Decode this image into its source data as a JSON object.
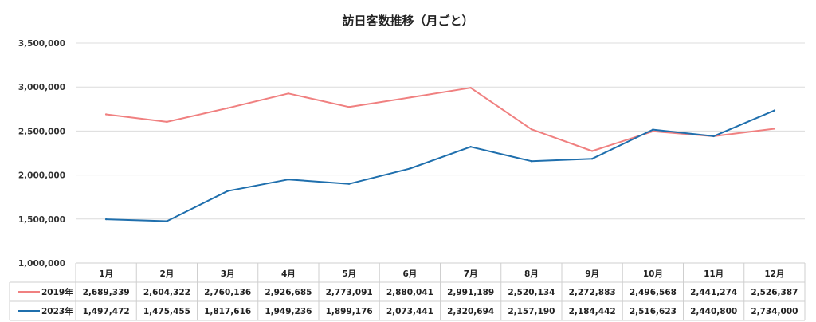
{
  "chart_data": {
    "type": "line",
    "title": "訪日客数推移（月ごと）",
    "categories": [
      "1月",
      "2月",
      "3月",
      "4月",
      "5月",
      "6月",
      "7月",
      "8月",
      "9月",
      "10月",
      "11月",
      "12月"
    ],
    "y_ticks": [
      "3,500,000",
      "3,000,000",
      "2,500,000",
      "2,000,000",
      "1,500,000",
      "1,000,000"
    ],
    "ylim": [
      1000000,
      3500000
    ],
    "grid": true,
    "legend": "data-table",
    "series": [
      {
        "name": "2019年",
        "color": "#f08080",
        "values": [
          2689339,
          2604322,
          2760136,
          2926685,
          2773091,
          2880041,
          2991189,
          2520134,
          2272883,
          2496568,
          2441274,
          2526387
        ],
        "labels": [
          "2,689,339",
          "2,604,322",
          "2,760,136",
          "2,926,685",
          "2,773,091",
          "2,880,041",
          "2,991,189",
          "2,520,134",
          "2,272,883",
          "2,496,568",
          "2,441,274",
          "2,526,387"
        ]
      },
      {
        "name": "2023年",
        "color": "#1f6fad",
        "values": [
          1497472,
          1475455,
          1817616,
          1949236,
          1899176,
          2073441,
          2320694,
          2157190,
          2184442,
          2516623,
          2440800,
          2734000
        ],
        "labels": [
          "1,497,472",
          "1,475,455",
          "1,817,616",
          "1,949,236",
          "1,899,176",
          "2,073,441",
          "2,320,694",
          "2,157,190",
          "2,184,442",
          "2,516,623",
          "2,440,800",
          "2,734,000"
        ]
      }
    ]
  }
}
